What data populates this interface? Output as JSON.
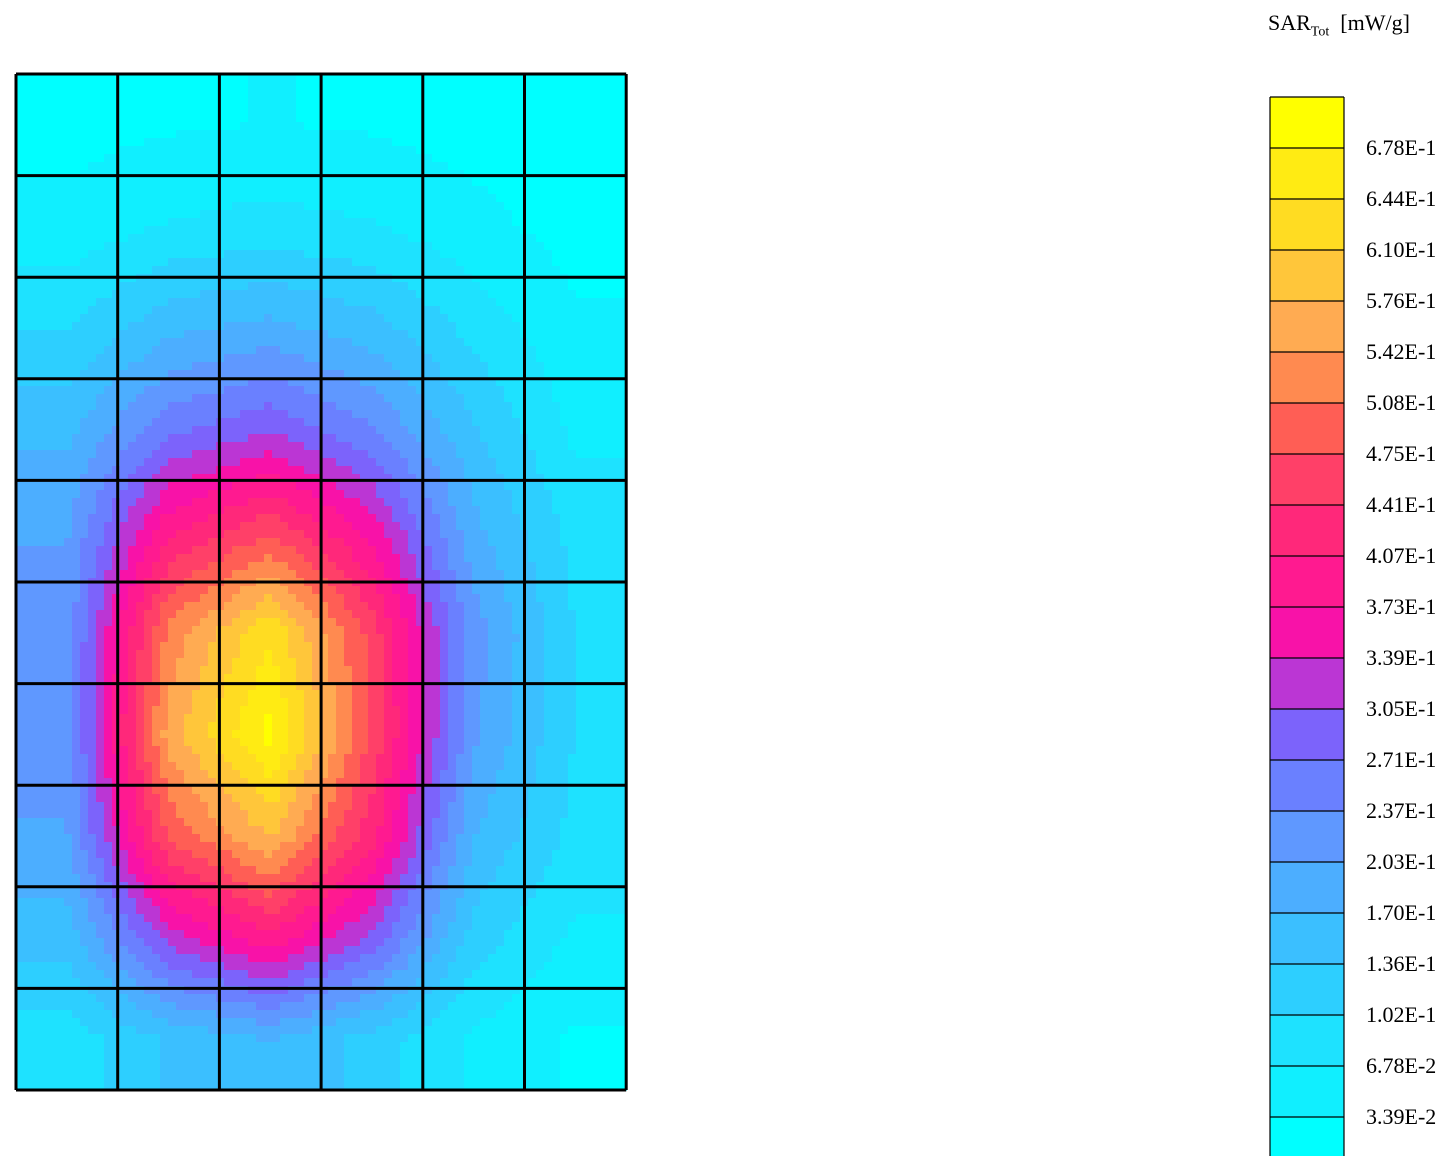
{
  "chart_data": {
    "type": "heatmap",
    "title": "",
    "legend": {
      "quantity": "SAR",
      "quantity_subscript": "Tot",
      "unit": "[mW/g]",
      "placement": "right"
    },
    "levels": [
      "6.78E-1",
      "6.44E-1",
      "6.10E-1",
      "5.76E-1",
      "5.42E-1",
      "5.08E-1",
      "4.75E-1",
      "4.41E-1",
      "4.07E-1",
      "3.73E-1",
      "3.39E-1",
      "3.05E-1",
      "2.71E-1",
      "2.37E-1",
      "2.03E-1",
      "1.70E-1",
      "1.36E-1",
      "1.02E-1",
      "6.78E-2",
      "3.39E-2"
    ],
    "band_colors": [
      "#ffff00",
      "#ffeb13",
      "#ffdc22",
      "#ffc63a",
      "#ffab52",
      "#ff8a50",
      "#ff5e55",
      "#ff4068",
      "#ff287a",
      "#ff1a90",
      "#f812a8",
      "#bb36d4",
      "#7c63fb",
      "#6a80ff",
      "#5f98ff",
      "#4caeff",
      "#3bbfff",
      "#2dcfff",
      "#1ee2ff",
      "#10efff",
      "#00ffff"
    ],
    "grid": {
      "rows": 10,
      "cols": 6
    },
    "values": [
      [
        0.02,
        0.03,
        0.035,
        0.03,
        0.02,
        0.01
      ],
      [
        0.045,
        0.07,
        0.08,
        0.07,
        0.045,
        0.02
      ],
      [
        0.1,
        0.16,
        0.18,
        0.15,
        0.09,
        0.04
      ],
      [
        0.16,
        0.26,
        0.3,
        0.24,
        0.14,
        0.06
      ],
      [
        0.2,
        0.4,
        0.47,
        0.36,
        0.18,
        0.09
      ],
      [
        0.22,
        0.52,
        0.64,
        0.46,
        0.22,
        0.1
      ],
      [
        0.22,
        0.56,
        0.69,
        0.47,
        0.21,
        0.1
      ],
      [
        0.2,
        0.48,
        0.58,
        0.42,
        0.17,
        0.09
      ],
      [
        0.15,
        0.32,
        0.4,
        0.3,
        0.12,
        0.06
      ],
      [
        0.08,
        0.14,
        0.17,
        0.12,
        0.06,
        0.03
      ]
    ],
    "vmin": 0,
    "vmax": 0.712
  }
}
